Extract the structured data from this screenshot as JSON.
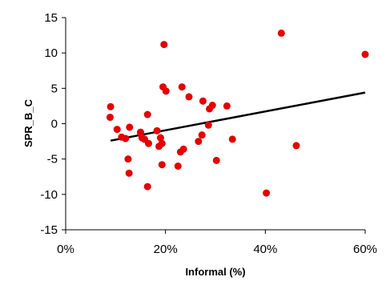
{
  "chart_data": {
    "type": "scatter",
    "xlabel": "Informal (%)",
    "ylabel": "SPR_B_C",
    "xlim": [
      0,
      60
    ],
    "ylim": [
      -15,
      15
    ],
    "x_ticks": [
      0,
      20,
      40,
      60
    ],
    "x_tick_labels": [
      "0%",
      "20%",
      "40%",
      "60%"
    ],
    "y_ticks": [
      -15,
      -10,
      -5,
      0,
      5,
      10,
      15
    ],
    "y_tick_labels": [
      "-15",
      "-10",
      "-5",
      "0",
      "5",
      "10",
      "15"
    ],
    "grid": false,
    "legend": "none",
    "colors": {
      "points": "#e60000",
      "trendline": "#000000"
    },
    "series": [
      {
        "type": "scatter",
        "x": [
          9,
          8.9,
          10.3,
          11.2,
          12,
          12.5,
          12.7,
          12.8,
          15,
          15,
          15.3,
          15.8,
          16.4,
          16.6,
          16.4,
          18.3,
          18.7,
          19,
          19.3,
          19.3,
          19.5,
          19.7,
          20.1,
          22.5,
          23,
          23.3,
          23.6,
          24.7,
          26.6,
          27.3,
          27.5,
          28.6,
          28.8,
          29.4,
          30.2,
          32.3,
          33.4,
          40.2,
          43.2,
          46.2,
          60
        ],
        "y": [
          2.4,
          0.9,
          -0.8,
          -1.9,
          -2.1,
          -5,
          -7,
          -0.5,
          -1.2,
          -1.3,
          -2,
          -2.2,
          1.3,
          -2.8,
          -8.9,
          -1,
          -3.2,
          -2,
          -2.8,
          -5.8,
          5.2,
          11.2,
          4.6,
          -6,
          -4,
          5.2,
          -3.6,
          3.8,
          -2.5,
          -1.6,
          3.2,
          -0.2,
          2.1,
          2.6,
          -5.2,
          2.5,
          -2.2,
          -9.8,
          12.8,
          -3.1,
          9.8
        ]
      },
      {
        "type": "line",
        "x": [
          9,
          60
        ],
        "y": [
          -2.4,
          4.4
        ]
      }
    ]
  }
}
